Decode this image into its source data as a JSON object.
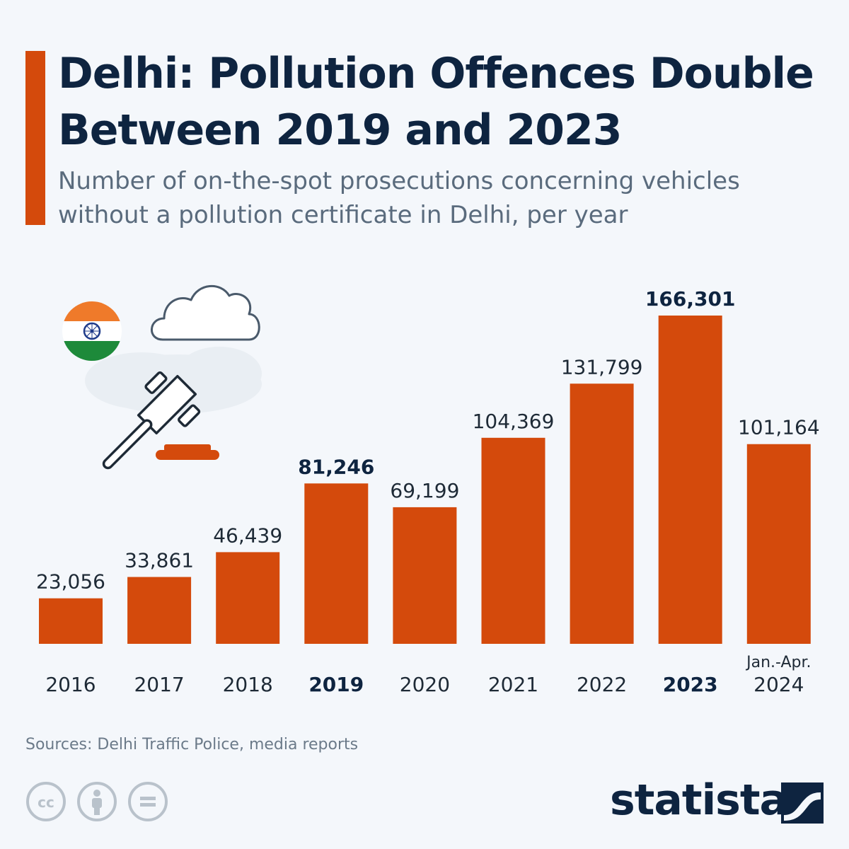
{
  "header": {
    "title": "Delhi: Pollution Offences Double Between 2019 and 2023",
    "subtitle": "Number of on-the-spot prosecutions concerning vehicles without a pollution certificate in Delhi, per year"
  },
  "footer": {
    "source": "Sources: Delhi Traffic Police, media reports",
    "brand": "statista",
    "license_icons": [
      "cc-icon",
      "attribution-icon",
      "no-derivatives-icon"
    ]
  },
  "colors": {
    "accent": "#d44a0c",
    "bar": "#d44a0c",
    "title": "#0e2440",
    "text": "#1e2a36"
  },
  "illustration": {
    "icons": [
      "india-flag-icon",
      "cloud-icon",
      "gavel-icon"
    ]
  },
  "chart_data": {
    "type": "bar",
    "title": "Delhi: Pollution Offences Double Between 2019 and 2023",
    "subtitle": "Number of on-the-spot prosecutions concerning vehicles without a pollution certificate in Delhi, per year",
    "categories": [
      "2016",
      "2017",
      "2018",
      "2019",
      "2020",
      "2021",
      "2022",
      "2023",
      "2024"
    ],
    "category_notes": [
      "",
      "",
      "",
      "",
      "",
      "",
      "",
      "",
      "Jan.-Apr."
    ],
    "values": [
      23056,
      33861,
      46439,
      81246,
      69199,
      104369,
      131799,
      166301,
      101164
    ],
    "value_labels": [
      "23,056",
      "33,861",
      "46,439",
      "81,246",
      "69,199",
      "104,369",
      "131,799",
      "166,301",
      "101,164"
    ],
    "highlighted": [
      "2019",
      "2023"
    ],
    "xlabel": "",
    "ylabel": "",
    "ylim": [
      0,
      166301
    ],
    "grid": false,
    "legend": "none"
  }
}
